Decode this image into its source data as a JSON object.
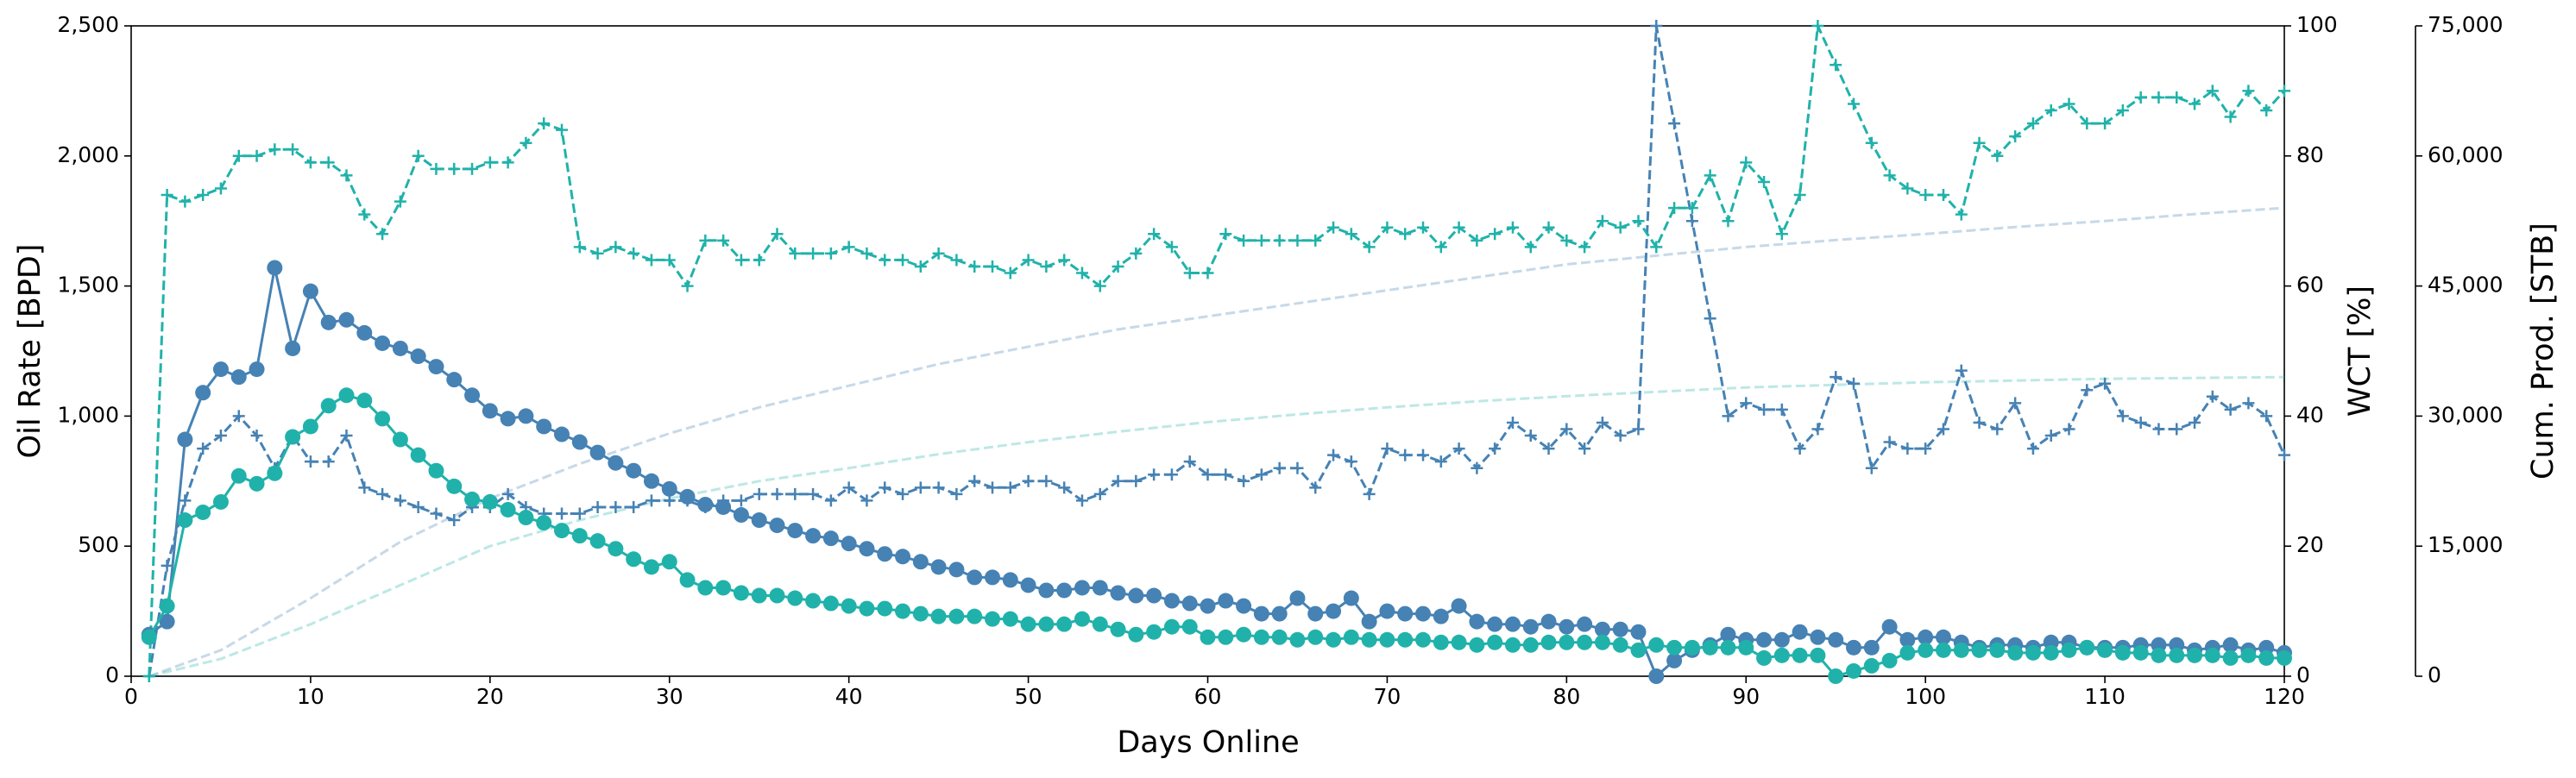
{
  "chart_data": {
    "type": "line",
    "xlabel": "Days Online",
    "ylabel": "Oil Rate [BPD]",
    "y2label": "WCT [%]",
    "y3label": "Cum. Prod. [STB]",
    "x": [
      1,
      2,
      3,
      4,
      5,
      6,
      7,
      8,
      9,
      10,
      11,
      12,
      13,
      14,
      15,
      16,
      17,
      18,
      19,
      20,
      21,
      22,
      23,
      24,
      25,
      26,
      27,
      28,
      29,
      30,
      31,
      32,
      33,
      34,
      35,
      36,
      37,
      38,
      39,
      40,
      41,
      42,
      43,
      44,
      45,
      46,
      47,
      48,
      49,
      50,
      51,
      52,
      53,
      54,
      55,
      56,
      57,
      58,
      59,
      60,
      61,
      62,
      63,
      64,
      65,
      66,
      67,
      68,
      69,
      70,
      71,
      72,
      73,
      74,
      75,
      76,
      77,
      78,
      79,
      80,
      81,
      82,
      83,
      84,
      85,
      86,
      87,
      88,
      89,
      90,
      91,
      92,
      93,
      94,
      95,
      96,
      97,
      98,
      99,
      100,
      101,
      102,
      103,
      104,
      105,
      106,
      107,
      108,
      109,
      110,
      111,
      112,
      113,
      114,
      115,
      116,
      117,
      118,
      119,
      120
    ],
    "xlim": [
      0,
      120
    ],
    "xticks": [
      0,
      10,
      20,
      30,
      40,
      50,
      60,
      70,
      80,
      90,
      100,
      110,
      120
    ],
    "ylim": [
      0,
      2500
    ],
    "yticks": [
      0,
      500,
      {
        "value": 1000,
        "label": "1,000"
      },
      {
        "value": 1500,
        "label": "1,500"
      },
      {
        "value": 2000,
        "label": "2,000"
      },
      {
        "value": 2500,
        "label": "2,500"
      }
    ],
    "y2lim": [
      0,
      100
    ],
    "y2ticks": [
      0,
      20,
      40,
      60,
      80,
      100
    ],
    "y3lim": [
      0,
      75000
    ],
    "y3ticks": [
      0,
      {
        "value": 15000,
        "label": "15,000"
      },
      {
        "value": 30000,
        "label": "30,000"
      },
      {
        "value": 45000,
        "label": "45,000"
      },
      {
        "value": 60000,
        "label": "60,000"
      },
      {
        "value": 75000,
        "label": "75,000"
      }
    ],
    "grid": false,
    "series": [
      {
        "color": "#4682b4",
        "axis": "y3",
        "linestyle": "dashed",
        "marker": "none",
        "alpha": 0.3,
        "x": [
          1,
          5,
          10,
          15,
          20,
          25,
          30,
          35,
          40,
          45,
          50,
          55,
          60,
          65,
          70,
          75,
          80,
          85,
          90,
          95,
          100,
          105,
          110,
          115,
          120
        ],
        "values": [
          0,
          3000,
          9000,
          15500,
          20500,
          24500,
          28000,
          31000,
          33500,
          36000,
          38000,
          40000,
          41500,
          43000,
          44500,
          46000,
          47500,
          48500,
          49500,
          50300,
          51000,
          51800,
          52500,
          53300,
          54000
        ]
      },
      {
        "color": "#20b2aa",
        "axis": "y3",
        "linestyle": "dashed",
        "marker": "none",
        "alpha": 0.3,
        "x": [
          1,
          5,
          10,
          15,
          20,
          25,
          30,
          35,
          40,
          45,
          50,
          55,
          60,
          65,
          70,
          75,
          80,
          85,
          90,
          95,
          100,
          105,
          110,
          115,
          120
        ],
        "values": [
          0,
          2000,
          6000,
          10500,
          15000,
          18000,
          20500,
          22500,
          24000,
          25600,
          27000,
          28200,
          29300,
          30200,
          31000,
          31700,
          32300,
          32800,
          33300,
          33600,
          33900,
          34100,
          34300,
          34400,
          34500
        ]
      },
      {
        "color": "#4682b4",
        "axis": "y2",
        "linestyle": "dashed",
        "marker": "+",
        "alpha": 1,
        "values": [
          0,
          17,
          27,
          35,
          37,
          40,
          37,
          32,
          37,
          33,
          33,
          37,
          29,
          28,
          27,
          26,
          25,
          24,
          26,
          26,
          28,
          26,
          25,
          25,
          25,
          26,
          26,
          26,
          27,
          27,
          27,
          26,
          27,
          27,
          28,
          28,
          28,
          28,
          27,
          29,
          27,
          29,
          28,
          29,
          29,
          28,
          30,
          29,
          29,
          30,
          30,
          29,
          27,
          28,
          30,
          30,
          31,
          31,
          33,
          31,
          31,
          30,
          31,
          32,
          32,
          29,
          34,
          33,
          28,
          35,
          34,
          34,
          33,
          35,
          32,
          35,
          39,
          37,
          35,
          38,
          35,
          39,
          37,
          38,
          100,
          85,
          70,
          55,
          40,
          42,
          41,
          41,
          35,
          38,
          46,
          45,
          32,
          36,
          35,
          35,
          38,
          47,
          39,
          38,
          42,
          35,
          37,
          38,
          44,
          45,
          40,
          39,
          38,
          38,
          39,
          43,
          41,
          42,
          40,
          34
        ]
      },
      {
        "color": "#20b2aa",
        "axis": "y2",
        "linestyle": "dashed",
        "marker": "+",
        "alpha": 1,
        "values": [
          0,
          74,
          73,
          74,
          75,
          80,
          80,
          81,
          81,
          79,
          79,
          77,
          71,
          68,
          73,
          80,
          78,
          78,
          78,
          79,
          79,
          82,
          85,
          84,
          66,
          65,
          66,
          65,
          64,
          64,
          60,
          67,
          67,
          64,
          64,
          68,
          65,
          65,
          65,
          66,
          65,
          64,
          64,
          63,
          65,
          64,
          63,
          63,
          62,
          64,
          63,
          64,
          62,
          60,
          63,
          65,
          68,
          66,
          62,
          62,
          68,
          67,
          67,
          67,
          67,
          67,
          69,
          68,
          66,
          69,
          68,
          69,
          66,
          69,
          67,
          68,
          69,
          66,
          69,
          67,
          66,
          70,
          69,
          70,
          66,
          72,
          72,
          77,
          70,
          79,
          76,
          68,
          74,
          100,
          94,
          88,
          82,
          77,
          75,
          74,
          74,
          71,
          82,
          80,
          83,
          85,
          87,
          88,
          85,
          85,
          87,
          89,
          89,
          89,
          88,
          90,
          86,
          90,
          87,
          90
        ]
      },
      {
        "color": "#4682b4",
        "axis": "y",
        "linestyle": "solid",
        "marker": "o",
        "alpha": 1,
        "values": [
          160,
          210,
          910,
          1090,
          1180,
          1150,
          1180,
          1570,
          1260,
          1480,
          1360,
          1370,
          1320,
          1280,
          1260,
          1230,
          1190,
          1140,
          1080,
          1020,
          990,
          1000,
          960,
          930,
          900,
          860,
          820,
          790,
          750,
          720,
          690,
          660,
          650,
          620,
          600,
          580,
          560,
          540,
          530,
          510,
          490,
          470,
          460,
          440,
          420,
          410,
          380,
          380,
          370,
          350,
          330,
          330,
          340,
          340,
          320,
          310,
          310,
          290,
          280,
          270,
          290,
          270,
          240,
          240,
          300,
          240,
          250,
          300,
          210,
          250,
          240,
          240,
          230,
          270,
          210,
          200,
          200,
          190,
          210,
          190,
          200,
          180,
          180,
          170,
          0,
          60,
          100,
          120,
          160,
          140,
          140,
          140,
          170,
          150,
          140,
          110,
          110,
          190,
          140,
          150,
          150,
          130,
          110,
          120,
          120,
          110,
          130,
          130,
          110,
          110,
          110,
          120,
          120,
          120,
          100,
          110,
          120,
          100,
          110,
          90
        ]
      },
      {
        "color": "#20b2aa",
        "axis": "y",
        "linestyle": "solid",
        "marker": "o",
        "alpha": 1,
        "values": [
          150,
          270,
          600,
          630,
          670,
          770,
          740,
          780,
          920,
          960,
          1040,
          1080,
          1060,
          990,
          910,
          850,
          790,
          730,
          680,
          670,
          640,
          610,
          590,
          560,
          540,
          520,
          490,
          450,
          420,
          440,
          370,
          340,
          340,
          320,
          310,
          310,
          300,
          290,
          280,
          270,
          260,
          260,
          250,
          240,
          230,
          230,
          230,
          220,
          220,
          200,
          200,
          200,
          220,
          200,
          180,
          160,
          170,
          190,
          190,
          150,
          150,
          160,
          150,
          150,
          140,
          150,
          140,
          150,
          140,
          140,
          140,
          140,
          130,
          130,
          120,
          130,
          120,
          120,
          130,
          130,
          130,
          130,
          120,
          100,
          120,
          110,
          110,
          110,
          110,
          110,
          70,
          80,
          80,
          80,
          0,
          20,
          40,
          60,
          90,
          100,
          100,
          100,
          100,
          100,
          90,
          90,
          90,
          100,
          110,
          100,
          90,
          90,
          80,
          80,
          80,
          80,
          70,
          80,
          70,
          70
        ]
      }
    ]
  }
}
